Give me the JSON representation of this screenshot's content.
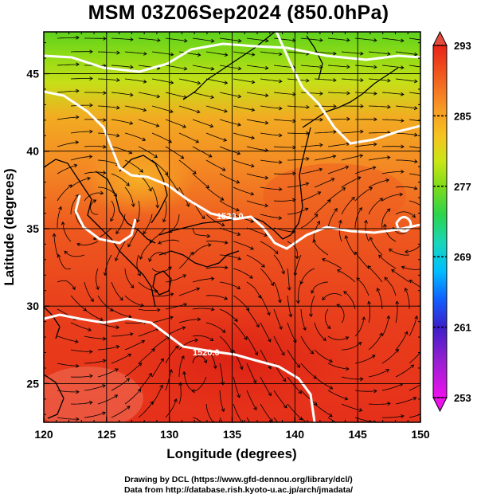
{
  "title": "MSM 03Z06Sep2024 (850.0hPa)",
  "x_axis": {
    "label": "Longitude (degrees)",
    "ticks": [
      "120",
      "125",
      "130",
      "135",
      "140",
      "145",
      "150"
    ],
    "range": [
      120,
      150
    ]
  },
  "y_axis": {
    "label": "Latitude  (degrees)",
    "ticks": [
      "25",
      "30",
      "35",
      "40",
      "45"
    ],
    "range": [
      22.5,
      47.7
    ]
  },
  "colorbar": {
    "labels": [
      "293",
      "285",
      "277",
      "269",
      "261",
      "253"
    ],
    "range": [
      253,
      293
    ],
    "colors": [
      "#e0e",
      "#9b1fd2",
      "#3b1fc8",
      "#1060ff",
      "#00bfff",
      "#19d6b9",
      "#2cd44a",
      "#7fdb1a",
      "#c9e616",
      "#f5c51f",
      "#f79a25",
      "#f2641f",
      "#e82318"
    ]
  },
  "contours": [
    {
      "label": "1520.0"
    },
    {
      "label": "1520.0"
    }
  ],
  "credits": {
    "line1": "Drawing by DCL (https://www.gfd-dennou.org/library/dcl/)",
    "line2": "Data from http://database.rish.kyoto-u.ac.jp/arch/jmadata/"
  }
}
